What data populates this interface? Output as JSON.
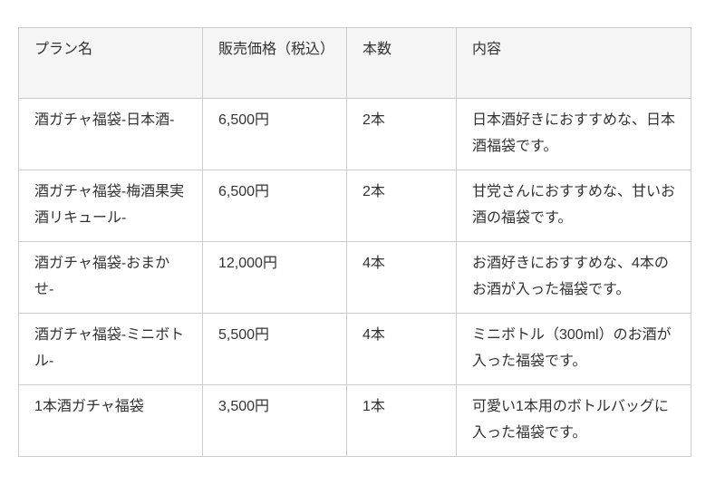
{
  "table": {
    "columns": [
      {
        "label": "プラン名"
      },
      {
        "label": "販売価格（税込）"
      },
      {
        "label": "本数"
      },
      {
        "label": "内容"
      }
    ],
    "rows": [
      {
        "plan": "酒ガチャ福袋-日本酒-",
        "price": "6,500円",
        "bottles": "2本",
        "description": "日本酒好きにおすすめな、日本酒福袋です。"
      },
      {
        "plan": "酒ガチャ福袋-梅酒果実酒リキュール-",
        "price": "6,500円",
        "bottles": "2本",
        "description": "甘党さんにおすすめな、甘いお酒の福袋です。"
      },
      {
        "plan": "酒ガチャ福袋-おまかせ-",
        "price": "12,000円",
        "bottles": "4本",
        "description": "お酒好きにおすすめな、4本のお酒が入った福袋です。"
      },
      {
        "plan": "酒ガチャ福袋-ミニボトル-",
        "price": "5,500円",
        "bottles": "4本",
        "description": "ミニボトル（300ml）のお酒が入った福袋です。"
      },
      {
        "plan": "1本酒ガチャ福袋",
        "price": "3,500円",
        "bottles": "1本",
        "description": "可愛い1本用のボトルバッグに入った福袋です。"
      }
    ],
    "colors": {
      "header_bg": "#f5f5f5",
      "border": "#cccccc",
      "text": "#333333",
      "body_bg": "#ffffff"
    }
  }
}
